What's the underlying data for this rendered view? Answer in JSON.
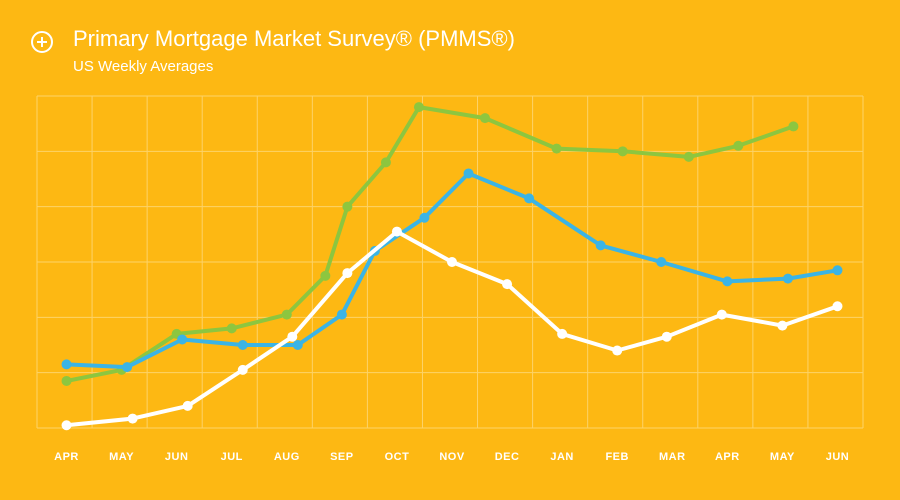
{
  "theme": {
    "background": "#FDB813",
    "grid": "#FDD369",
    "icon_color": "#FFFFFF"
  },
  "header": {
    "title": "Primary Mortgage Market Survey® (PMMS®)",
    "subtitle": "US Weekly Averages",
    "icon": "add-circle-icon"
  },
  "chart_data": {
    "type": "line",
    "title": "Primary Mortgage Market Survey® (PMMS®)",
    "subtitle": "US Weekly Averages",
    "x_ticks": [
      "APR",
      "MAY",
      "JUN",
      "JUL",
      "AUG",
      "SEP",
      "OCT",
      "NOV",
      "DEC",
      "JAN",
      "FEB",
      "MAR",
      "APR",
      "MAY",
      "JUN"
    ],
    "ylim": [
      0,
      6
    ],
    "grid": true,
    "y_tick_labels_shown": false,
    "series": [
      {
        "color": "#8DC63F",
        "points": [
          [
            0,
            0.85
          ],
          [
            1,
            1.05
          ],
          [
            2,
            1.7
          ],
          [
            3,
            1.8
          ],
          [
            4,
            2.05
          ],
          [
            4.7,
            2.75
          ],
          [
            5.1,
            4.0
          ],
          [
            5.8,
            4.8
          ],
          [
            6.4,
            5.8
          ],
          [
            7.6,
            5.6
          ],
          [
            8.9,
            5.05
          ],
          [
            10.1,
            5.0
          ],
          [
            11.3,
            4.9
          ],
          [
            12.2,
            5.1
          ],
          [
            13.2,
            5.45
          ]
        ]
      },
      {
        "color": "#3BB4E5",
        "points": [
          [
            0,
            1.15
          ],
          [
            1.1,
            1.1
          ],
          [
            2.1,
            1.6
          ],
          [
            3.2,
            1.5
          ],
          [
            4.2,
            1.5
          ],
          [
            5,
            2.05
          ],
          [
            5.6,
            3.2
          ],
          [
            6.5,
            3.8
          ],
          [
            7.3,
            4.6
          ],
          [
            8.4,
            4.15
          ],
          [
            9.7,
            3.3
          ],
          [
            10.8,
            3.0
          ],
          [
            12,
            2.65
          ],
          [
            13.1,
            2.7
          ],
          [
            14,
            2.85
          ]
        ]
      },
      {
        "color": "#FFFFFF",
        "points": [
          [
            0,
            0.05
          ],
          [
            1.2,
            0.17
          ],
          [
            2.2,
            0.4
          ],
          [
            3.2,
            1.05
          ],
          [
            4.1,
            1.65
          ],
          [
            5.1,
            2.8
          ],
          [
            6,
            3.55
          ],
          [
            7,
            3.0
          ],
          [
            8,
            2.6
          ],
          [
            9,
            1.7
          ],
          [
            10,
            1.4
          ],
          [
            10.9,
            1.65
          ],
          [
            11.9,
            2.05
          ],
          [
            13,
            1.85
          ],
          [
            14,
            2.2
          ]
        ]
      }
    ]
  }
}
